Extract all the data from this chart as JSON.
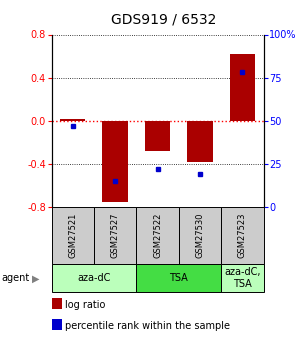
{
  "title": "GDS919 / 6532",
  "samples": [
    "GSM27521",
    "GSM27527",
    "GSM27522",
    "GSM27530",
    "GSM27523"
  ],
  "log_ratios": [
    0.02,
    -0.75,
    -0.28,
    -0.38,
    0.62
  ],
  "percentile_ranks": [
    47,
    15,
    22,
    19,
    78
  ],
  "ylim_left": [
    -0.8,
    0.8
  ],
  "ylim_right": [
    0,
    100
  ],
  "yticks_left": [
    -0.8,
    -0.4,
    0.0,
    0.4,
    0.8
  ],
  "yticks_right": [
    0,
    25,
    50,
    75,
    100
  ],
  "bar_color": "#aa0000",
  "dot_color": "#0000cc",
  "sample_box_color": "#cccccc",
  "title_fontsize": 10,
  "tick_fontsize": 7,
  "sample_fontsize": 6,
  "agent_fontsize": 7,
  "legend_fontsize": 7,
  "agent_label": "agent",
  "legend_items": [
    "log ratio",
    "percentile rank within the sample"
  ],
  "group_info": [
    [
      0,
      1,
      "aza-dC",
      "#bbffbb"
    ],
    [
      2,
      3,
      "TSA",
      "#44dd44"
    ],
    [
      4,
      4,
      "aza-dC,\nTSA",
      "#bbffbb"
    ]
  ]
}
